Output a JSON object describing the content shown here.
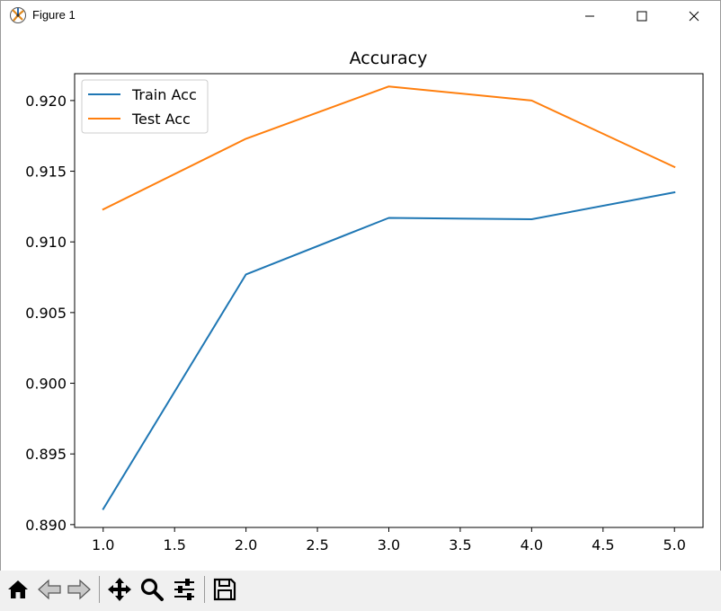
{
  "window": {
    "title": "Figure 1",
    "icons": [
      "matplotlib-logo-icon",
      "minimize-icon",
      "maximize-icon",
      "close-icon"
    ]
  },
  "toolbar": {
    "buttons": [
      "home-icon",
      "back-icon",
      "forward-icon",
      "pan-icon",
      "zoom-icon",
      "configure-subplots-icon",
      "save-icon"
    ]
  },
  "chart_data": {
    "type": "line",
    "title": "Accuracy",
    "xlabel": "",
    "ylabel": "",
    "x": [
      1.0,
      2.0,
      3.0,
      4.0,
      5.0
    ],
    "xlim": [
      0.8,
      5.2
    ],
    "ylim": [
      0.8898,
      0.9219
    ],
    "xticks": [
      1.0,
      1.5,
      2.0,
      2.5,
      3.0,
      3.5,
      4.0,
      4.5,
      5.0
    ],
    "xtick_labels": [
      "1.0",
      "1.5",
      "2.0",
      "2.5",
      "3.0",
      "3.5",
      "4.0",
      "4.5",
      "5.0"
    ],
    "yticks": [
      0.89,
      0.895,
      0.9,
      0.905,
      0.91,
      0.915,
      0.92
    ],
    "ytick_labels": [
      "0.890",
      "0.895",
      "0.900",
      "0.905",
      "0.910",
      "0.915",
      "0.920"
    ],
    "grid": false,
    "legend_position": "top-left",
    "series": [
      {
        "name": "Train Acc",
        "color": "#1f77b4",
        "values": [
          0.8911,
          0.9077,
          0.9117,
          0.9116,
          0.9135
        ]
      },
      {
        "name": "Test Acc",
        "color": "#ff7f0e",
        "values": [
          0.9123,
          0.9173,
          0.921,
          0.92,
          0.9153
        ]
      }
    ]
  }
}
